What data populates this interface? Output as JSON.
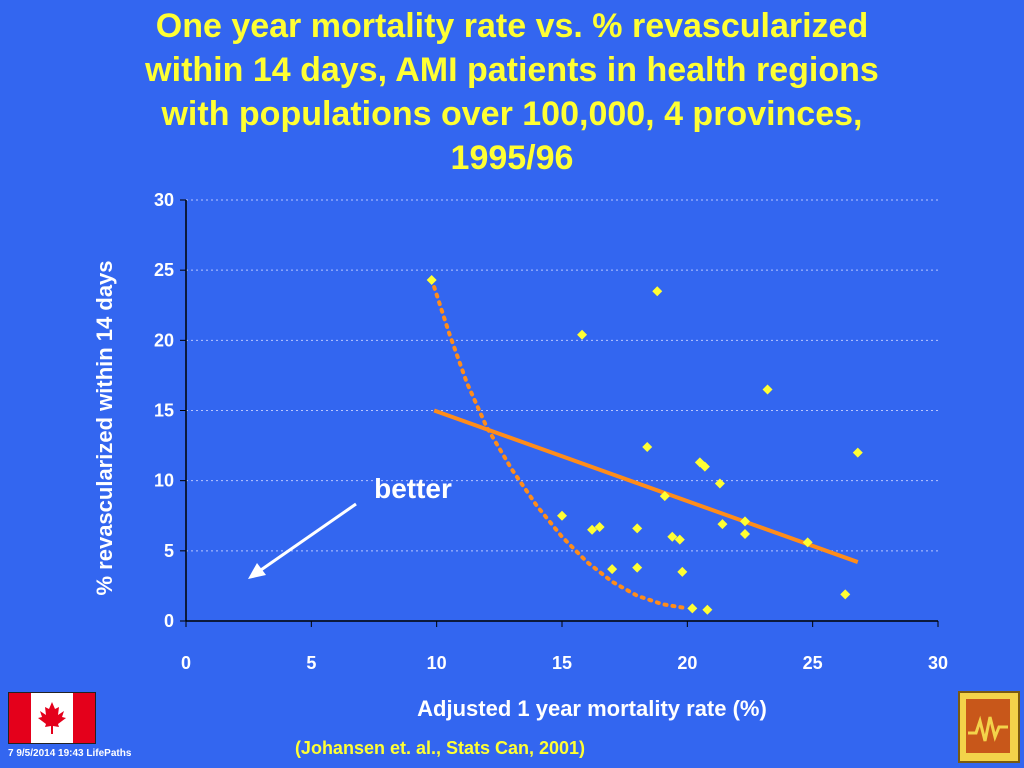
{
  "title_lines": [
    "One year mortality rate  vs.  % revascularized",
    "within 14 days, AMI patients in health regions",
    "with populations over 100,000,  4 provinces,",
    "1995/96"
  ],
  "annotation": "better",
  "citation": "(Johansen et. al., Stats Can, 2001)",
  "footer": "7 9/5/2014 19:43  LifePaths",
  "colors": {
    "background": "#3366f0",
    "title": "#ffff33",
    "points": "#ffff33",
    "trend": "#ff8c1a",
    "axis_text": "#ffffff"
  },
  "icons": [
    "canada-flag-icon",
    "lifepaths-logo-icon"
  ],
  "chart_data": {
    "type": "scatter",
    "xlabel": "Adjusted 1 year mortality rate (%)",
    "ylabel": "% revascularized within 14 days",
    "xlim": [
      0,
      30
    ],
    "ylim": [
      0,
      30
    ],
    "xticks": [
      "0",
      "5",
      "10",
      "15",
      "20",
      "25",
      "30"
    ],
    "yticks": [
      "0",
      "5",
      "10",
      "15",
      "20",
      "25",
      "30"
    ],
    "grid": "horizontal dotted",
    "points": [
      {
        "x": 9.8,
        "y": 24.3
      },
      {
        "x": 15.0,
        "y": 7.5
      },
      {
        "x": 15.8,
        "y": 20.4
      },
      {
        "x": 16.2,
        "y": 6.5
      },
      {
        "x": 16.5,
        "y": 6.7
      },
      {
        "x": 17.0,
        "y": 3.7
      },
      {
        "x": 18.0,
        "y": 6.6
      },
      {
        "x": 18.0,
        "y": 3.8
      },
      {
        "x": 18.4,
        "y": 12.4
      },
      {
        "x": 18.8,
        "y": 23.5
      },
      {
        "x": 19.1,
        "y": 8.9
      },
      {
        "x": 19.4,
        "y": 6.0
      },
      {
        "x": 19.7,
        "y": 5.8
      },
      {
        "x": 19.8,
        "y": 3.5
      },
      {
        "x": 20.2,
        "y": 0.9
      },
      {
        "x": 20.5,
        "y": 11.3
      },
      {
        "x": 20.7,
        "y": 11.0
      },
      {
        "x": 20.8,
        "y": 0.8
      },
      {
        "x": 21.3,
        "y": 9.8
      },
      {
        "x": 21.4,
        "y": 6.9
      },
      {
        "x": 22.3,
        "y": 7.1
      },
      {
        "x": 22.3,
        "y": 6.2
      },
      {
        "x": 23.2,
        "y": 16.5
      },
      {
        "x": 24.8,
        "y": 5.6
      },
      {
        "x": 26.3,
        "y": 1.9
      },
      {
        "x": 26.8,
        "y": 12.0
      }
    ],
    "trend_line": {
      "x": [
        9.9,
        26.8
      ],
      "y": [
        15.0,
        4.2
      ]
    },
    "fitted_curve": {
      "x": [
        9.9,
        10.5,
        11.2,
        12.0,
        13.0,
        14.0,
        15.0,
        16.0,
        17.0,
        18.0,
        19.0,
        20.0
      ],
      "y": [
        23.8,
        20.5,
        17.0,
        13.8,
        10.8,
        8.2,
        6.0,
        4.2,
        2.8,
        1.8,
        1.2,
        0.9
      ]
    }
  }
}
